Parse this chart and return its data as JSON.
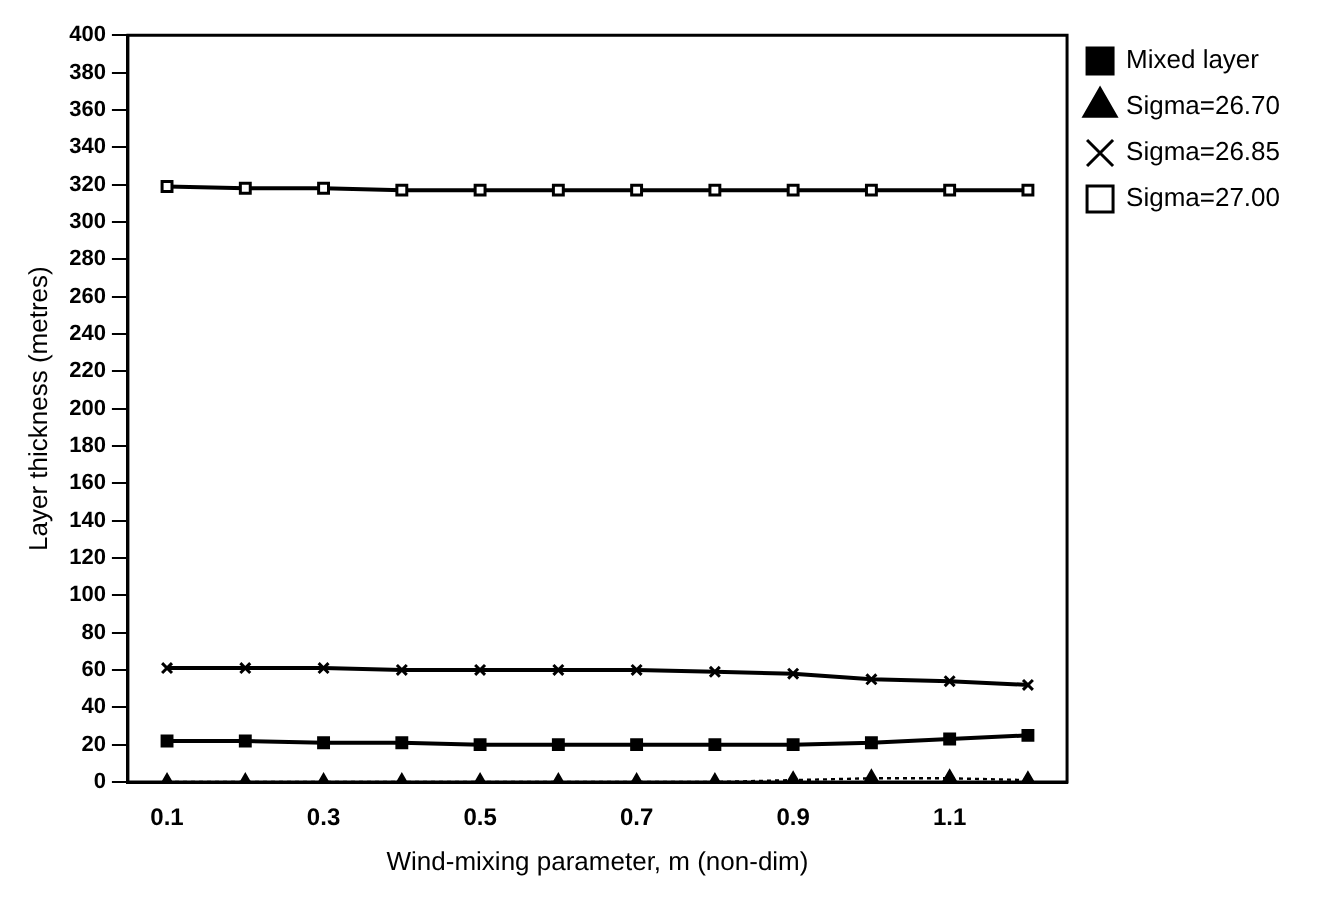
{
  "chart_data": {
    "type": "line",
    "xlabel": "Wind-mixing parameter, m (non-dim)",
    "ylabel": "Layer thickness (metres)",
    "x": [
      0.1,
      0.2,
      0.3,
      0.4,
      0.5,
      0.6,
      0.7,
      0.8,
      0.9,
      1.0,
      1.1,
      1.2
    ],
    "series": [
      {
        "name": "Mixed layer",
        "color": "#000000",
        "marker": "square",
        "line_style": "solid",
        "values": [
          22,
          22,
          21,
          21,
          20,
          20,
          20,
          20,
          20,
          21,
          23,
          25
        ]
      },
      {
        "name": "Sigma=26.70",
        "color": "#000000",
        "marker": "triangle",
        "line_style": "dotted",
        "values": [
          0,
          0,
          0,
          0,
          0,
          0,
          0,
          0,
          1,
          2,
          2,
          1
        ]
      },
      {
        "name": "Sigma=26.85",
        "color": "#000000",
        "marker": "cross",
        "line_style": "solid",
        "values": [
          61,
          61,
          61,
          60,
          60,
          60,
          60,
          59,
          58,
          55,
          54,
          52
        ]
      },
      {
        "name": "Sigma=27.00",
        "color": "#000000",
        "marker": "square",
        "line_style": "solid",
        "values": [
          319,
          318,
          318,
          317,
          317,
          317,
          317,
          317,
          317,
          317,
          317,
          317
        ]
      }
    ],
    "xlim": [
      0.05,
      1.25
    ],
    "xticks": [
      0.1,
      0.3,
      0.5,
      0.7,
      0.9,
      1.1
    ],
    "ylim": [
      0,
      400
    ],
    "yticks": [
      0,
      20,
      40,
      60,
      80,
      100,
      120,
      140,
      160,
      180,
      200,
      220,
      240,
      260,
      280,
      300,
      320,
      340,
      360,
      380,
      400
    ],
    "grid": false,
    "legend": "right"
  }
}
